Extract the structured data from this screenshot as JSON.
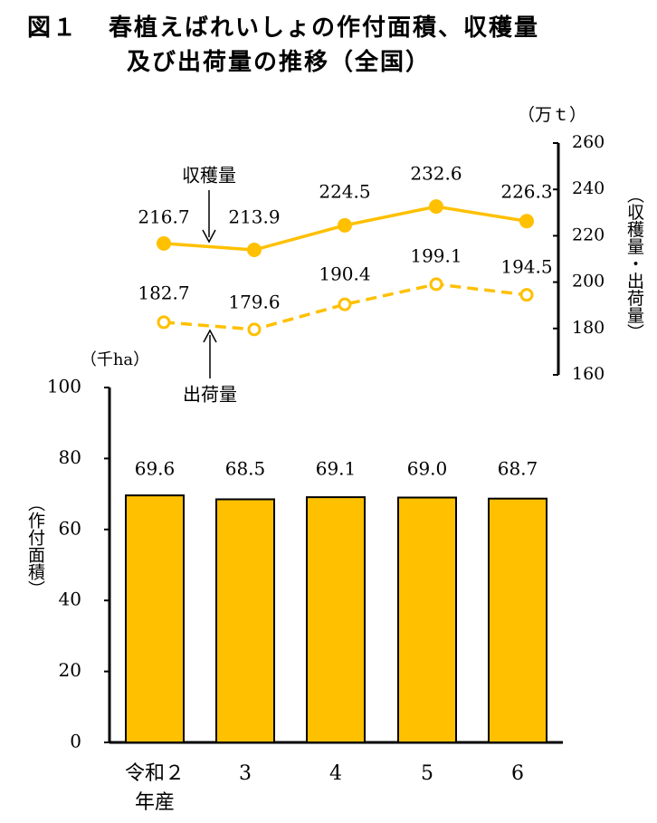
{
  "figure_label": "図１",
  "title_line1": "春植えばれいしょの作付面積、収穫量",
  "title_line2": "及び出荷量の推移（全国）",
  "colors": {
    "series": "#FFC000",
    "bar_stroke": "#000000",
    "axis": "#000000"
  },
  "chart_data": [
    {
      "type": "line",
      "categories": [
        "令和２年産",
        "3",
        "4",
        "5",
        "6"
      ],
      "series": [
        {
          "name": "収穫量",
          "values": [
            216.7,
            213.9,
            224.5,
            232.6,
            226.3
          ],
          "style": "solid-filled-markers"
        },
        {
          "name": "出荷量",
          "values": [
            182.7,
            179.6,
            190.4,
            199.1,
            194.5
          ],
          "style": "dashed-hollow-markers"
        }
      ],
      "ylabel": "（収穫量・出荷量）",
      "unit": "（万ｔ）",
      "ylim": [
        160,
        260
      ],
      "yticks": [
        160,
        180,
        200,
        220,
        240,
        260
      ],
      "axis_position": "right"
    },
    {
      "type": "bar",
      "categories": [
        "令和２年産",
        "3",
        "4",
        "5",
        "6"
      ],
      "values": [
        69.6,
        68.5,
        69.1,
        69.0,
        68.7
      ],
      "ylabel": "（作付面積）",
      "unit": "（千ha）",
      "ylim": [
        0,
        100
      ],
      "yticks": [
        0,
        20,
        40,
        60,
        80,
        100
      ],
      "axis_position": "left"
    }
  ],
  "x_labels": {
    "first_line1": "令和２",
    "first_line2": "年産",
    "others": [
      "3",
      "4",
      "5",
      "6"
    ]
  }
}
